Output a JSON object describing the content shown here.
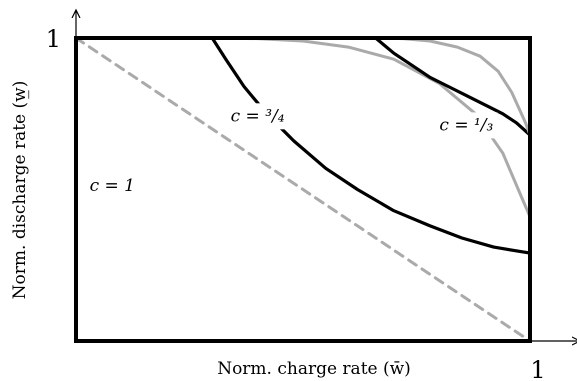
{
  "chart_data": {
    "type": "line",
    "title": "",
    "xlabel": "Norm. charge rate (w̄)",
    "ylabel": "Norm. discharge rate (w̲)",
    "xlim": [
      0,
      1
    ],
    "ylim": [
      0,
      1
    ],
    "x_ticks": [
      {
        "value": 1,
        "label": "1"
      }
    ],
    "y_ticks": [
      {
        "value": 1,
        "label": "1"
      }
    ],
    "grid": false,
    "colors": {
      "frame": "#000000",
      "black_curve": "#000000",
      "gray_curve": "#aaaaaa",
      "diagonal": "#aaaaaa"
    },
    "series": [
      {
        "label": "c = 1",
        "style": "dashed",
        "color": "#aaaaaa",
        "x": [
          0.0,
          0.25,
          0.5,
          0.75,
          1.0
        ],
        "y": [
          1.0,
          0.75,
          0.5,
          0.25,
          0.0
        ]
      },
      {
        "label": "c = ³/₄",
        "style": "solid",
        "color": "#000000",
        "x": [
          0.3,
          0.33,
          0.37,
          0.42,
          0.48,
          0.55,
          0.62,
          0.7,
          0.78,
          0.85,
          0.92,
          1.0
        ],
        "y": [
          1.0,
          0.93,
          0.84,
          0.75,
          0.66,
          0.57,
          0.5,
          0.43,
          0.38,
          0.34,
          0.31,
          0.29
        ]
      },
      {
        "style": "solid",
        "color": "#aaaaaa",
        "x": [
          0.3,
          0.4,
          0.5,
          0.6,
          0.7,
          0.8,
          0.88,
          0.94,
          0.98,
          1.0
        ],
        "y": [
          1.0,
          0.998,
          0.99,
          0.97,
          0.93,
          0.85,
          0.75,
          0.62,
          0.48,
          0.41
        ]
      },
      {
        "label": "c = ¹/₃",
        "style": "solid",
        "color": "#000000",
        "x": [
          0.66,
          0.7,
          0.74,
          0.78,
          0.82,
          0.86,
          0.9,
          0.94,
          0.97,
          1.0
        ],
        "y": [
          1.0,
          0.95,
          0.91,
          0.87,
          0.84,
          0.81,
          0.78,
          0.75,
          0.72,
          0.68
        ]
      },
      {
        "style": "solid",
        "color": "#aaaaaa",
        "x": [
          0.66,
          0.72,
          0.78,
          0.84,
          0.89,
          0.93,
          0.96,
          0.99,
          1.0
        ],
        "y": [
          1.0,
          0.998,
          0.99,
          0.97,
          0.94,
          0.89,
          0.82,
          0.72,
          0.68
        ]
      }
    ],
    "annotations": [
      {
        "text": "c = 1",
        "x": 0.08,
        "y": 0.51
      },
      {
        "text": "c = ³/₄",
        "x": 0.4,
        "y": 0.74
      },
      {
        "text": "c = ¹/₃",
        "x": 0.86,
        "y": 0.71
      }
    ]
  }
}
